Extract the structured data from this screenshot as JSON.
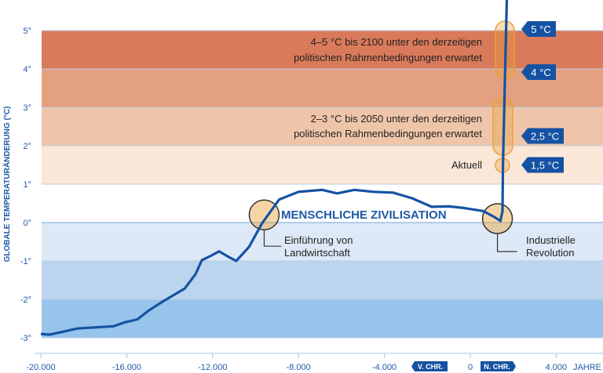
{
  "chart_data": {
    "type": "line",
    "ylabel": "GLOBALE TEMPERATURÄNDERUNG (°C)",
    "xlabel": "JAHRE",
    "xlim": [
      -20200,
      6200
    ],
    "ylim": [
      -3.4,
      5.8
    ],
    "x_ticks": [
      -20000,
      -16000,
      -12000,
      -8000,
      -4000,
      0,
      4000
    ],
    "x_tick_labels": [
      "-20.000",
      "-16.000",
      "-12.000",
      "-8.000",
      "-4.000",
      "0",
      "4.000"
    ],
    "y_ticks": [
      5,
      4,
      3,
      2,
      1,
      0,
      -1,
      -2,
      -3
    ],
    "y_tick_labels": [
      "5°",
      "4°",
      "3°",
      "2°",
      "1°",
      "0°",
      "-1°",
      "-2°",
      "-3°"
    ],
    "era_labels": {
      "bc": "V. CHR.",
      "ad": "N. CHR."
    },
    "bands": [
      {
        "from": 4,
        "to": 5,
        "color": "#d97a5a"
      },
      {
        "from": 3,
        "to": 4,
        "color": "#e4a17f"
      },
      {
        "from": 2,
        "to": 3,
        "color": "#efc5a9"
      },
      {
        "from": 1,
        "to": 2,
        "color": "#fae7d7"
      },
      {
        "from": 0,
        "to": 1,
        "color": "#ffffff"
      },
      {
        "from": -1,
        "to": 0,
        "color": "#dde9f6"
      },
      {
        "from": -2,
        "to": -1,
        "color": "#bcd5ef"
      },
      {
        "from": -3,
        "to": -2,
        "color": "#96c4ea"
      }
    ],
    "series": [
      {
        "color": "#1552a3",
        "x": [
          -20000,
          -19600,
          -19000,
          -18300,
          -17800,
          -17200,
          -16600,
          -16100,
          -15500,
          -15000,
          -14300,
          -13300,
          -12800,
          -12500,
          -12200,
          -11700,
          -11300,
          -10900,
          -10300,
          -9700,
          -8900,
          -8000,
          -6900,
          -6200,
          -5400,
          -4500,
          -3600,
          -2700,
          -1800,
          -1000,
          -300,
          600,
          1100,
          1400,
          1500,
          1520,
          1600,
          1700
        ],
        "y": [
          -2.9,
          -2.92,
          -2.85,
          -2.76,
          -2.74,
          -2.72,
          -2.7,
          -2.6,
          -2.52,
          -2.3,
          -2.05,
          -1.72,
          -1.35,
          -0.98,
          -0.9,
          -0.75,
          -0.88,
          -1.0,
          -0.63,
          -0.02,
          0.6,
          0.8,
          0.85,
          0.76,
          0.85,
          0.8,
          0.78,
          0.63,
          0.41,
          0.42,
          0.38,
          0.3,
          0.15,
          0.04,
          0.3,
          1.5,
          3.5,
          5.8
        ]
      }
    ],
    "annotations": {
      "civilization": "MENSCHLICHE ZIVILISATION",
      "agriculture": {
        "line1": "Einführung von",
        "line2": "Landwirtschaft",
        "x": -9600,
        "y": 0.2
      },
      "industrial": {
        "line1": "Industrielle",
        "line2": "Revolution",
        "x": 1300,
        "y": 0
      },
      "range_45": {
        "line1": "4–5 °C bis 2100 unter den derzeitigen",
        "line2": "politischen Rahmenbedingungen erwartet"
      },
      "range_23": {
        "line1": "2–3 °C bis 2050 unter den derzeitigen",
        "line2": "politischen Rahmenbedingungen erwartet"
      },
      "current": "Aktuell",
      "tags": [
        {
          "label": "5 °C",
          "value": 5
        },
        {
          "label": "4 °C",
          "value": 4
        },
        {
          "label": "2,5 °C",
          "value": 2.5
        },
        {
          "label": "1,5 °C",
          "value": 1.5
        }
      ]
    },
    "highlight_color": "#e8a13a",
    "tag_color": "#1552a3"
  }
}
